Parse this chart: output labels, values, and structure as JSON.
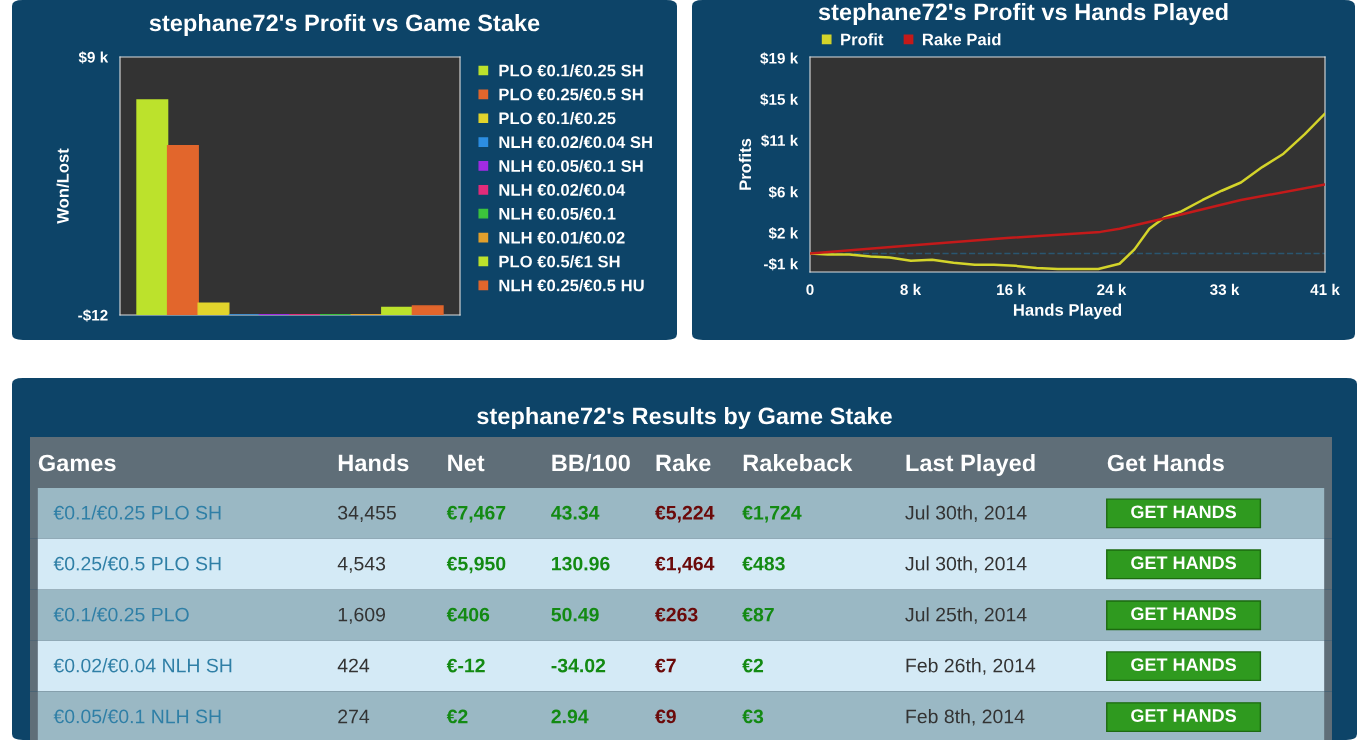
{
  "chart_data": [
    {
      "type": "bar",
      "title": "stephane72's Profit vs Game Stake",
      "ylabel": "Won/Lost",
      "categories": [
        null
      ],
      "legend": "right",
      "ylim": [
        -12,
        9000
      ],
      "yticks": [
        {
          "value": 9000,
          "label": "$9 k"
        },
        {
          "value": -12,
          "label": "-$12"
        }
      ],
      "series": [
        {
          "name": "PLO €0.1/€0.25 SH",
          "color": "#bce22c",
          "values": [
            7500
          ]
        },
        {
          "name": "PLO €0.25/€0.5 SH",
          "color": "#e2662c",
          "values": [
            5900
          ]
        },
        {
          "name": "PLO €0.1/€0.25",
          "color": "#e2d42c",
          "values": [
            400
          ]
        },
        {
          "name": "NLH €0.02/€0.04 SH",
          "color": "#2c8ee2",
          "values": [
            -12
          ]
        },
        {
          "name": "NLH €0.05/€0.1 SH",
          "color": "#a02ce2",
          "values": [
            0
          ]
        },
        {
          "name": "NLH €0.02/€0.04",
          "color": "#e22c7a",
          "values": [
            0
          ]
        },
        {
          "name": "NLH €0.05/€0.1",
          "color": "#3cc43c",
          "values": [
            0
          ]
        },
        {
          "name": "NLH €0.01/€0.02",
          "color": "#e2a02c",
          "values": [
            0
          ]
        },
        {
          "name": "PLO €0.5/€1 SH",
          "color": "#bce22c",
          "values": [
            250
          ]
        },
        {
          "name": "NLH €0.25/€0.5 HU",
          "color": "#e2662c",
          "values": [
            300
          ]
        }
      ]
    },
    {
      "type": "line",
      "title": "stephane72's Profit vs Hands Played",
      "xlabel": "Hands Played",
      "ylabel": "Profits",
      "legend": "top left",
      "xlim": [
        0,
        41000
      ],
      "xticks": [
        {
          "value": 0,
          "label": "0"
        },
        {
          "value": 8000,
          "label": "8 k"
        },
        {
          "value": 16000,
          "label": "16 k"
        },
        {
          "value": 24000,
          "label": "24 k"
        },
        {
          "value": 33000,
          "label": "33 k"
        },
        {
          "value": 41000,
          "label": "41 k"
        }
      ],
      "ylim": [
        -1800,
        19100
      ],
      "yticks": [
        {
          "value": -1000,
          "label": "-$1 k"
        },
        {
          "value": 2000,
          "label": "$2 k"
        },
        {
          "value": 6000,
          "label": "$6 k"
        },
        {
          "value": 11000,
          "label": "$11 k"
        },
        {
          "value": 15000,
          "label": "$15 k"
        },
        {
          "value": 19000,
          "label": "$19 k"
        }
      ],
      "ref_lines": [
        {
          "axis": "y",
          "value": 0,
          "color": "#2a5670",
          "line_style": "dashed"
        }
      ],
      "series": [
        {
          "name": "Profit",
          "color": "#d4d42a",
          "x": [
            0,
            1424,
            3119,
            4814,
            6339,
            8034,
            9729,
            11424,
            13119,
            14645,
            16340,
            18035,
            19730,
            21425,
            22950,
            24645,
            25832,
            27018,
            28205,
            29561,
            31256,
            32781,
            34307,
            36002,
            37697,
            39392,
            41000
          ],
          "values": [
            0,
            -100,
            -100,
            -300,
            -400,
            -700,
            -600,
            -900,
            -1100,
            -1100,
            -1200,
            -1400,
            -1500,
            -1500,
            -1500,
            -1000,
            400,
            2400,
            3500,
            4100,
            5200,
            6100,
            6900,
            8400,
            9700,
            11600,
            13600
          ]
        },
        {
          "name": "Rake Paid",
          "color": "#c41a1a",
          "x": [
            0,
            7187,
            15662,
            23120,
            24645,
            29222,
            34307,
            41000
          ],
          "values": [
            0,
            700,
            1500,
            2100,
            2400,
            3700,
            5200,
            6700
          ]
        }
      ]
    },
    {
      "type": "other",
      "title": "stephane72's Results by Game Stake",
      "categories": [
        "Games",
        "Hands",
        "Net",
        "BB/100",
        "Rake",
        "Rakeback",
        "Last Played",
        "Get Hands"
      ],
      "cell_labels": [
        [
          "€0.1/€0.25 PLO SH",
          "34,455",
          "€7,467",
          "43.34",
          "€5,224",
          "€1,724",
          "Jul 30th, 2014",
          "GET HANDS"
        ],
        [
          "€0.25/€0.5 PLO SH",
          "4,543",
          "€5,950",
          "130.96",
          "€1,464",
          "€483",
          "Jul 30th, 2014",
          "GET HANDS"
        ],
        [
          "€0.1/€0.25 PLO",
          "1,609",
          "€406",
          "50.49",
          "€263",
          "€87",
          "Jul 25th, 2014",
          "GET HANDS"
        ],
        [
          "€0.02/€0.04 NLH SH",
          "424",
          "€-12",
          "-34.02",
          "€7",
          "€2",
          "Feb 26th, 2014",
          "GET HANDS"
        ],
        [
          "€0.05/€0.1 NLH SH",
          "274",
          "€2",
          "2.94",
          "€9",
          "€3",
          "Feb 8th, 2014",
          "GET HANDS"
        ]
      ]
    }
  ]
}
